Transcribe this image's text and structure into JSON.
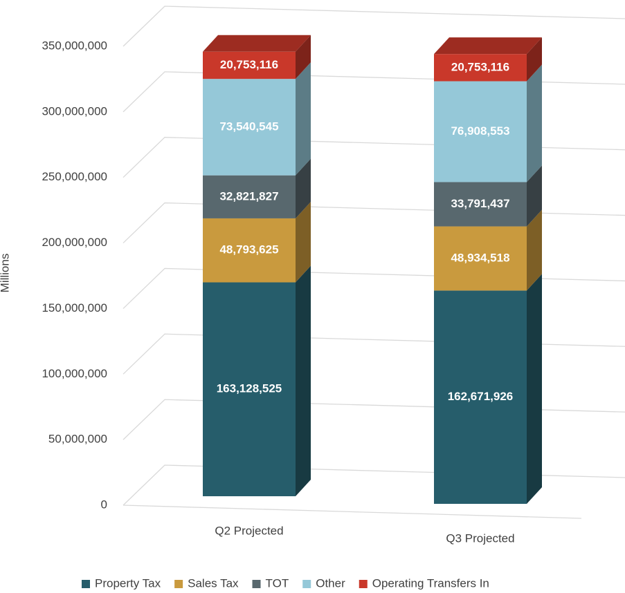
{
  "chart_data": {
    "type": "bar",
    "stacked": true,
    "three_d": true,
    "y_label": "Millions",
    "categories": [
      "Q2 Projected",
      "Q3 Projected"
    ],
    "series": [
      {
        "name": "Property Tax",
        "color": "#265d6b",
        "values": [
          163128525,
          162671926
        ],
        "value_labels": [
          "163,128,525",
          "162,671,926"
        ]
      },
      {
        "name": "Sales Tax",
        "color": "#c99a3e",
        "values": [
          48793625,
          48934518
        ],
        "value_labels": [
          "48,793,625",
          "48,934,518"
        ]
      },
      {
        "name": "TOT",
        "color": "#58686e",
        "values": [
          32821827,
          33791437
        ],
        "value_labels": [
          "32,821,827",
          "33,791,437"
        ]
      },
      {
        "name": "Other",
        "color": "#95c8d8",
        "values": [
          73540545,
          76908553
        ],
        "value_labels": [
          "73,540,545",
          "76,908,553"
        ]
      },
      {
        "name": "Operating Transfers In",
        "color": "#c9382a",
        "values": [
          20753116,
          20753116
        ],
        "value_labels": [
          "20,753,116",
          "20,753,116"
        ]
      }
    ],
    "ylim": [
      0,
      350000000
    ],
    "yticks": [
      0,
      {
        "value": 50000000,
        "label": "50,000,000"
      },
      {
        "value": 100000000,
        "label": "100,000,000"
      },
      {
        "value": 150000000,
        "label": "150,000,000"
      },
      {
        "value": 200000000,
        "label": "200,000,000"
      },
      {
        "value": 250000000,
        "label": "250,000,000"
      },
      {
        "value": 300000000,
        "label": "300,000,000"
      },
      {
        "value": 350000000,
        "label": "350,000,000"
      }
    ],
    "grid": true,
    "legend": "bottom"
  }
}
